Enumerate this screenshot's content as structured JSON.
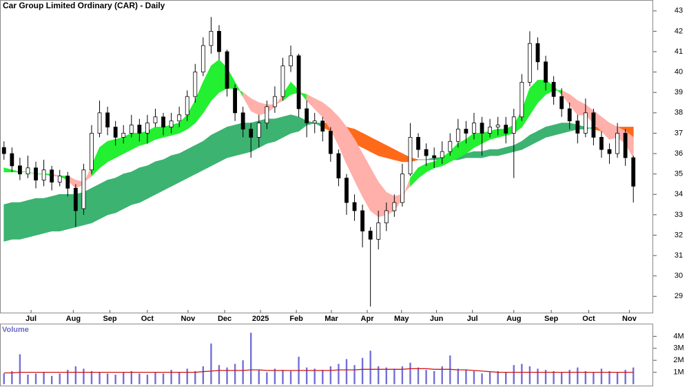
{
  "chart_data": [
    {
      "type": "candlestick",
      "title": "Car Group Limited Ordinary (CAR) - Daily",
      "xlim": [
        -0.5,
        79.5
      ],
      "xticks": [
        {
          "value": 3.4,
          "label": "Jul"
        },
        {
          "value": 8.7,
          "label": "Aug"
        },
        {
          "value": 13.3,
          "label": "Sep"
        },
        {
          "value": 18.0,
          "label": "Oct"
        },
        {
          "value": 23.1,
          "label": "Nov"
        },
        {
          "value": 27.7,
          "label": "Dec"
        },
        {
          "value": 32.2,
          "label": "2025"
        },
        {
          "value": 36.7,
          "label": "Feb"
        },
        {
          "value": 41.1,
          "label": "Mar"
        },
        {
          "value": 45.6,
          "label": "Apr"
        },
        {
          "value": 49.9,
          "label": "May"
        },
        {
          "value": 54.3,
          "label": "Jun"
        },
        {
          "value": 58.8,
          "label": "Jul"
        },
        {
          "value": 64.0,
          "label": "Aug"
        },
        {
          "value": 68.7,
          "label": "Sep"
        },
        {
          "value": 73.4,
          "label": "Oct"
        },
        {
          "value": 78.5,
          "label": "Nov"
        }
      ],
      "ylim": [
        28.2,
        43.5
      ],
      "yticks": [
        29,
        30,
        31,
        32,
        33,
        34,
        35,
        36,
        37,
        38,
        39,
        40,
        41,
        42,
        43
      ],
      "up_color": "#ffffff",
      "down_color": "#000000",
      "open": [
        36.3,
        36.0,
        35.4,
        35.0,
        35.3,
        34.7,
        35.2,
        34.6,
        34.9,
        34.3,
        33.3,
        35.2,
        37.0,
        38.0,
        37.3,
        36.8,
        37.0,
        37.4,
        37.0,
        37.5,
        37.8,
        37.3,
        37.6,
        37.9,
        38.8,
        40.0,
        41.3,
        42.0,
        41.0,
        39.2,
        38.0,
        37.2,
        36.8,
        37.5,
        38.3,
        38.8,
        40.3,
        40.8,
        38.2,
        37.5,
        37.6,
        37.1,
        36.0,
        34.8,
        33.6,
        33.2,
        32.2,
        31.8,
        32.6,
        33.2,
        33.6,
        35.0,
        36.8,
        36.2,
        35.9,
        35.8,
        36.1,
        36.6,
        37.2,
        37.0,
        37.5,
        37.0,
        37.3,
        37.4,
        37.0,
        37.8,
        39.5,
        41.4,
        40.5,
        39.5,
        38.8,
        38.2,
        37.6,
        37.0,
        38.0,
        36.8,
        36.2,
        36.0,
        37.0,
        35.8
      ],
      "high": [
        36.6,
        36.3,
        35.8,
        35.9,
        35.6,
        35.7,
        35.4,
        35.2,
        35.1,
        34.5,
        35.5,
        37.4,
        38.6,
        38.3,
        37.6,
        37.4,
        37.9,
        37.7,
        37.9,
        38.2,
        38.0,
        38.0,
        38.3,
        39.1,
        40.4,
        41.7,
        42.7,
        42.3,
        41.1,
        39.4,
        38.3,
        37.5,
        37.9,
        38.6,
        39.3,
        40.7,
        41.3,
        40.9,
        38.6,
        38.0,
        37.8,
        37.3,
        36.2,
        35.0,
        34.0,
        33.5,
        32.4,
        33.2,
        33.6,
        34.0,
        35.5,
        37.5,
        37.0,
        36.5,
        36.3,
        36.6,
        37.0,
        37.7,
        37.6,
        38.0,
        37.8,
        37.7,
        37.8,
        37.8,
        38.2,
        39.9,
        42.0,
        41.7,
        40.8,
        39.8,
        39.2,
        38.5,
        37.9,
        38.7,
        38.2,
        37.1,
        36.5,
        37.5,
        37.2,
        35.9
      ],
      "low": [
        35.7,
        35.1,
        34.7,
        34.8,
        34.3,
        34.4,
        34.2,
        34.4,
        33.9,
        32.4,
        33.0,
        35.0,
        36.8,
        36.9,
        36.4,
        36.5,
        36.8,
        36.6,
        36.5,
        37.3,
        36.9,
        37.0,
        37.3,
        37.6,
        38.5,
        39.8,
        40.9,
        40.6,
        38.8,
        37.6,
        36.8,
        35.8,
        36.3,
        37.2,
        38.0,
        38.6,
        40.0,
        37.8,
        36.8,
        37.0,
        36.6,
        35.6,
        34.4,
        33.0,
        32.7,
        31.4,
        28.5,
        31.3,
        32.2,
        32.9,
        33.4,
        34.9,
        35.8,
        35.4,
        35.3,
        35.5,
        35.9,
        36.3,
        36.5,
        36.7,
        35.9,
        36.8,
        36.9,
        36.5,
        34.8,
        37.6,
        39.3,
        40.1,
        39.1,
        38.4,
        37.8,
        37.2,
        36.5,
        36.8,
        36.4,
        35.8,
        35.5,
        35.8,
        35.4,
        33.6
      ],
      "close": [
        36.0,
        35.4,
        35.0,
        35.3,
        34.7,
        35.2,
        34.6,
        34.9,
        34.3,
        33.2,
        35.2,
        37.0,
        38.0,
        37.3,
        36.8,
        37.0,
        37.4,
        37.0,
        37.5,
        37.8,
        37.3,
        37.6,
        37.9,
        38.8,
        40.0,
        41.3,
        42.0,
        41.0,
        39.2,
        38.0,
        37.2,
        36.8,
        37.5,
        38.3,
        38.8,
        40.3,
        40.8,
        38.2,
        37.5,
        37.6,
        37.1,
        36.0,
        34.8,
        33.6,
        33.2,
        32.2,
        31.8,
        32.6,
        33.2,
        33.6,
        35.0,
        36.8,
        36.2,
        35.9,
        35.8,
        36.1,
        36.6,
        37.2,
        37.0,
        37.5,
        37.0,
        37.3,
        37.4,
        37.0,
        37.8,
        39.5,
        41.4,
        40.5,
        39.5,
        38.8,
        38.2,
        37.6,
        37.0,
        38.0,
        36.8,
        36.2,
        36.0,
        37.0,
        35.8,
        34.4
      ],
      "bands": [
        {
          "up_color": "#3cb371",
          "down_color": "#ff6a1a",
          "fast": [
            33.5,
            33.6,
            33.6,
            33.7,
            33.8,
            33.8,
            33.9,
            34.0,
            34.0,
            34.0,
            34.1,
            34.3,
            34.5,
            34.7,
            34.8,
            35.0,
            35.1,
            35.3,
            35.4,
            35.6,
            35.7,
            35.9,
            36.0,
            36.2,
            36.4,
            36.6,
            36.9,
            37.1,
            37.3,
            37.4,
            37.5,
            37.5,
            37.6,
            37.7,
            37.7,
            37.8,
            37.9,
            37.8,
            37.6,
            37.5,
            37.3,
            37.1,
            36.9,
            36.7,
            36.5,
            36.3,
            36.1,
            35.9,
            35.8,
            35.7,
            35.6,
            35.6,
            35.7,
            35.7,
            35.8,
            35.8,
            35.9,
            36.0,
            36.0,
            36.1,
            36.1,
            36.2,
            36.2,
            36.3,
            36.4,
            36.6,
            36.9,
            37.1,
            37.3,
            37.4,
            37.5,
            37.5,
            37.4,
            37.3,
            37.2,
            37.1,
            37.0,
            36.9,
            36.9,
            36.8
          ],
          "slow": [
            31.7,
            31.8,
            31.8,
            31.9,
            32.0,
            32.1,
            32.2,
            32.2,
            32.3,
            32.4,
            32.5,
            32.6,
            32.8,
            33.0,
            33.1,
            33.3,
            33.5,
            33.6,
            33.8,
            34.0,
            34.2,
            34.4,
            34.6,
            34.8,
            35.0,
            35.2,
            35.4,
            35.6,
            35.8,
            35.9,
            36.0,
            36.1,
            36.3,
            36.5,
            36.6,
            36.8,
            37.0,
            37.1,
            37.4,
            37.5,
            37.5,
            37.5,
            37.4,
            37.3,
            37.2,
            37.0,
            36.8,
            36.6,
            36.4,
            36.2,
            36.0,
            35.8,
            35.7,
            35.7,
            35.7,
            35.7,
            35.7,
            35.7,
            35.8,
            35.8,
            35.8,
            35.9,
            35.9,
            36.0,
            36.1,
            36.2,
            36.4,
            36.6,
            36.8,
            36.9,
            37.0,
            37.1,
            37.2,
            37.2,
            37.3,
            37.3,
            37.3,
            37.3,
            37.3,
            37.3
          ]
        },
        {
          "up_color": "#22f030",
          "down_color": "#ffb0aa",
          "fast": [
            35.3,
            35.2,
            35.1,
            35.1,
            35.0,
            35.0,
            34.9,
            34.9,
            34.7,
            34.3,
            34.5,
            35.4,
            36.3,
            36.6,
            36.7,
            36.8,
            37.0,
            37.0,
            37.1,
            37.3,
            37.3,
            37.4,
            37.5,
            37.9,
            38.6,
            39.5,
            40.3,
            40.6,
            40.2,
            39.5,
            38.8,
            38.1,
            37.9,
            38.0,
            38.3,
            38.9,
            39.5,
            39.1,
            38.6,
            38.2,
            37.8,
            37.2,
            36.4,
            35.5,
            34.7,
            33.9,
            33.2,
            32.9,
            33.0,
            33.2,
            33.8,
            34.8,
            35.3,
            35.5,
            35.6,
            35.8,
            36.1,
            36.5,
            36.7,
            37.0,
            37.0,
            37.1,
            37.2,
            37.2,
            37.4,
            38.1,
            39.2,
            39.6,
            39.6,
            39.3,
            38.9,
            38.4,
            37.9,
            37.9,
            37.5,
            37.1,
            36.7,
            36.8,
            36.5,
            35.8
          ],
          "slow": [
            35.1,
            35.1,
            35.1,
            35.1,
            35.0,
            35.0,
            35.0,
            34.9,
            34.9,
            34.7,
            34.6,
            34.9,
            35.3,
            35.6,
            35.8,
            36.0,
            36.2,
            36.4,
            36.5,
            36.7,
            36.8,
            36.9,
            37.0,
            37.2,
            37.5,
            38.0,
            38.6,
            39.0,
            39.2,
            39.2,
            39.0,
            38.7,
            38.5,
            38.4,
            38.4,
            38.6,
            38.9,
            39.0,
            38.9,
            38.7,
            38.5,
            38.2,
            37.8,
            37.3,
            36.7,
            36.0,
            35.3,
            34.6,
            34.1,
            33.9,
            34.0,
            34.4,
            34.8,
            35.1,
            35.3,
            35.4,
            35.6,
            35.8,
            36.0,
            36.3,
            36.5,
            36.7,
            36.8,
            36.9,
            37.0,
            37.3,
            37.9,
            38.5,
            38.9,
            39.1,
            39.1,
            38.9,
            38.6,
            38.4,
            38.1,
            37.8,
            37.5,
            37.3,
            37.1,
            36.8
          ]
        }
      ]
    },
    {
      "type": "bar",
      "title": "Volume",
      "xlim": [
        -0.5,
        79.5
      ],
      "color": "#7070d8",
      "ylim": [
        0,
        5000000
      ],
      "yticks": [
        {
          "value": 1000000,
          "label": "1M"
        },
        {
          "value": 2000000,
          "label": "2M"
        },
        {
          "value": 3000000,
          "label": "3M"
        },
        {
          "value": 4000000,
          "label": "4M"
        }
      ],
      "values": [
        900000,
        1100000,
        2500000,
        800000,
        900000,
        1000000,
        700000,
        900000,
        1200000,
        1500000,
        1300000,
        1100000,
        1000000,
        900000,
        800000,
        1000000,
        1100000,
        900000,
        800000,
        1000000,
        900000,
        1200000,
        1000000,
        1300000,
        1100000,
        1500000,
        3400000,
        1600000,
        1400000,
        1700000,
        2000000,
        4300000,
        1200000,
        1000000,
        1300000,
        1200000,
        1100000,
        2300000,
        1400000,
        1300000,
        1200000,
        1500000,
        1700000,
        2100000,
        1600000,
        2200000,
        2800000,
        1500000,
        1400000,
        1300000,
        1500000,
        1800000,
        1400000,
        1200000,
        1100000,
        1500000,
        2400000,
        1300000,
        1200000,
        1100000,
        900000,
        1000000,
        1100000,
        1000000,
        1600000,
        1700000,
        1500000,
        1300000,
        1200000,
        1100000,
        1000000,
        1200000,
        1400000,
        1100000,
        1000000,
        1300000,
        1100000,
        1000000,
        1200000,
        1400000
      ],
      "ma": {
        "color": "#d01010",
        "values": [
          950000,
          950000,
          1000000,
          1000000,
          1000000,
          1000000,
          1000000,
          1000000,
          1000000,
          1000000,
          1000000,
          1000000,
          1000000,
          1000000,
          1000000,
          1000000,
          1000000,
          1000000,
          1000000,
          1000000,
          1000000,
          1000000,
          1000000,
          1000000,
          1000000,
          1050000,
          1100000,
          1150000,
          1150000,
          1150000,
          1150000,
          1200000,
          1200000,
          1150000,
          1150000,
          1150000,
          1150000,
          1150000,
          1150000,
          1150000,
          1150000,
          1150000,
          1200000,
          1200000,
          1200000,
          1250000,
          1250000,
          1250000,
          1250000,
          1250000,
          1250000,
          1300000,
          1300000,
          1300000,
          1250000,
          1250000,
          1250000,
          1200000,
          1200000,
          1150000,
          1100000,
          1050000,
          1000000,
          1000000,
          1000000,
          1000000,
          1000000,
          1000000,
          1000000,
          1000000,
          1000000,
          1000000,
          1000000,
          1000000,
          1000000,
          1000000,
          1000000,
          1000000,
          1000000,
          1000000
        ]
      }
    }
  ]
}
